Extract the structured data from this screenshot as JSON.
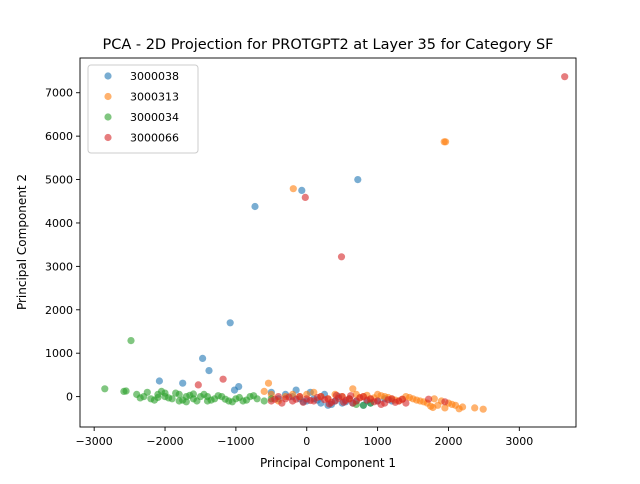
{
  "chart_data": {
    "type": "scatter",
    "title": "PCA - 2D Projection for PROTGPT2 at Layer 35 for Category SF",
    "xlabel": "Principal Component 1",
    "ylabel": "Principal Component 2",
    "xlim": [
      -3200,
      3800
    ],
    "ylim": [
      -700,
      7800
    ],
    "xticks": [
      -3000,
      -2000,
      -1000,
      0,
      1000,
      2000,
      3000
    ],
    "yticks": [
      0,
      1000,
      2000,
      3000,
      4000,
      5000,
      6000,
      7000
    ],
    "grid": false,
    "legend": "top-left",
    "series": [
      {
        "name": "3000038",
        "color": "#1f77b4",
        "points": [
          [
            720,
            5000
          ],
          [
            -70,
            4750
          ],
          [
            -730,
            4380
          ],
          [
            -1080,
            1700
          ],
          [
            -1470,
            880
          ],
          [
            -1380,
            600
          ],
          [
            -1750,
            310
          ],
          [
            -2080,
            360
          ],
          [
            -960,
            230
          ],
          [
            -1020,
            150
          ],
          [
            -500,
            100
          ],
          [
            -300,
            50
          ],
          [
            -150,
            150
          ],
          [
            -100,
            -50
          ],
          [
            0,
            -100
          ],
          [
            100,
            -50
          ],
          [
            200,
            -150
          ],
          [
            300,
            -200
          ],
          [
            400,
            -100
          ],
          [
            500,
            -150
          ],
          [
            600,
            -50
          ],
          [
            700,
            -100
          ],
          [
            800,
            -200
          ],
          [
            900,
            -150
          ],
          [
            1000,
            -100
          ],
          [
            1100,
            -50
          ],
          [
            1200,
            -100
          ],
          [
            -400,
            -50
          ],
          [
            -200,
            0
          ],
          [
            50,
            100
          ],
          [
            250,
            50
          ],
          [
            450,
            0
          ],
          [
            650,
            -150
          ],
          [
            850,
            -100
          ],
          [
            350,
            -180
          ],
          [
            550,
            -120
          ],
          [
            150,
            -80
          ],
          [
            -50,
            -120
          ]
        ]
      },
      {
        "name": "3000313",
        "color": "#ff7f0e",
        "points": [
          [
            1940,
            5870
          ],
          [
            1960,
            5870
          ],
          [
            -190,
            4790
          ],
          [
            -540,
            310
          ],
          [
            -600,
            120
          ],
          [
            2370,
            -260
          ],
          [
            2490,
            -290
          ],
          [
            2200,
            -240
          ],
          [
            2100,
            -200
          ],
          [
            2000,
            -150
          ],
          [
            1900,
            -100
          ],
          [
            1800,
            -50
          ],
          [
            1700,
            -150
          ],
          [
            1600,
            -100
          ],
          [
            1500,
            -50
          ],
          [
            1400,
            0
          ],
          [
            1300,
            -100
          ],
          [
            1200,
            -50
          ],
          [
            1100,
            0
          ],
          [
            1000,
            50
          ],
          [
            900,
            -50
          ],
          [
            800,
            0
          ],
          [
            700,
            50
          ],
          [
            650,
            180
          ],
          [
            600,
            -50
          ],
          [
            500,
            0
          ],
          [
            400,
            50
          ],
          [
            300,
            -50
          ],
          [
            200,
            0
          ],
          [
            100,
            100
          ],
          [
            0,
            50
          ],
          [
            -100,
            0
          ],
          [
            -200,
            50
          ],
          [
            -300,
            0
          ],
          [
            -400,
            -100
          ],
          [
            -500,
            50
          ],
          [
            1950,
            -260
          ],
          [
            2150,
            -280
          ],
          [
            1850,
            -200
          ],
          [
            1750,
            -220
          ],
          [
            1650,
            -120
          ],
          [
            1550,
            -80
          ],
          [
            1450,
            -20
          ],
          [
            1350,
            -60
          ],
          [
            1250,
            -80
          ],
          [
            1150,
            -20
          ],
          [
            1050,
            20
          ],
          [
            950,
            -30
          ],
          [
            850,
            30
          ],
          [
            750,
            -20
          ],
          [
            1780,
            -250
          ],
          [
            2050,
            -180
          ]
        ]
      },
      {
        "name": "3000034",
        "color": "#2ca02c",
        "points": [
          [
            -2480,
            1290
          ],
          [
            -2850,
            180
          ],
          [
            -2580,
            120
          ],
          [
            -2550,
            130
          ],
          [
            -2400,
            50
          ],
          [
            -2300,
            0
          ],
          [
            -2200,
            -50
          ],
          [
            -2100,
            50
          ],
          [
            -2000,
            0
          ],
          [
            -1900,
            -50
          ],
          [
            -1800,
            50
          ],
          [
            -1700,
            0
          ],
          [
            -1600,
            -50
          ],
          [
            -1500,
            0
          ],
          [
            -1400,
            -100
          ],
          [
            -1300,
            -50
          ],
          [
            -1200,
            0
          ],
          [
            -1100,
            -100
          ],
          [
            -1000,
            -50
          ],
          [
            -900,
            -100
          ],
          [
            -800,
            0
          ],
          [
            -700,
            -50
          ],
          [
            -600,
            -100
          ],
          [
            -500,
            -50
          ],
          [
            -2250,
            100
          ],
          [
            -2150,
            -80
          ],
          [
            -2050,
            120
          ],
          [
            -1950,
            -30
          ],
          [
            -1850,
            80
          ],
          [
            -1750,
            -80
          ],
          [
            -1650,
            30
          ],
          [
            -1550,
            -100
          ],
          [
            -1450,
            50
          ],
          [
            -1350,
            -80
          ],
          [
            -1250,
            20
          ],
          [
            -1150,
            -60
          ],
          [
            -1050,
            -120
          ],
          [
            -950,
            -20
          ],
          [
            -850,
            -80
          ],
          [
            -750,
            20
          ],
          [
            -2350,
            -30
          ],
          [
            -2000,
            80
          ],
          [
            -1800,
            -100
          ],
          [
            -1600,
            60
          ],
          [
            -1400,
            0
          ],
          [
            -1700,
            -120
          ],
          [
            -2100,
            -20
          ],
          [
            800,
            -200
          ],
          [
            700,
            -180
          ],
          [
            900,
            -150
          ]
        ]
      },
      {
        "name": "3000066",
        "color": "#d62728",
        "points": [
          [
            3640,
            7370
          ],
          [
            -20,
            4590
          ],
          [
            490,
            3220
          ],
          [
            -1180,
            400
          ],
          [
            -1530,
            270
          ],
          [
            1950,
            -120
          ],
          [
            1720,
            -60
          ],
          [
            1400,
            -150
          ],
          [
            1300,
            -100
          ],
          [
            1200,
            -50
          ],
          [
            1100,
            -150
          ],
          [
            1000,
            -100
          ],
          [
            900,
            -50
          ],
          [
            800,
            0
          ],
          [
            700,
            -100
          ],
          [
            600,
            -50
          ],
          [
            500,
            0
          ],
          [
            400,
            -100
          ],
          [
            300,
            -50
          ],
          [
            200,
            0
          ],
          [
            100,
            -100
          ],
          [
            0,
            -50
          ],
          [
            -100,
            0
          ],
          [
            -200,
            -100
          ],
          [
            -300,
            -50
          ],
          [
            -400,
            0
          ],
          [
            -500,
            -100
          ],
          [
            -350,
            -150
          ],
          [
            1050,
            -180
          ],
          [
            950,
            -120
          ],
          [
            850,
            -80
          ],
          [
            750,
            -30
          ],
          [
            650,
            -150
          ],
          [
            550,
            -90
          ],
          [
            450,
            -40
          ],
          [
            350,
            -130
          ],
          [
            250,
            -70
          ],
          [
            150,
            -20
          ],
          [
            50,
            -90
          ],
          [
            -50,
            -130
          ],
          [
            -150,
            -60
          ],
          [
            -250,
            -10
          ],
          [
            -450,
            -60
          ],
          [
            1150,
            -70
          ],
          [
            1250,
            -130
          ],
          [
            1350,
            -60
          ],
          [
            620,
            20
          ],
          [
            520,
            -130
          ],
          [
            420,
            30
          ],
          [
            320,
            -170
          ]
        ]
      }
    ]
  }
}
